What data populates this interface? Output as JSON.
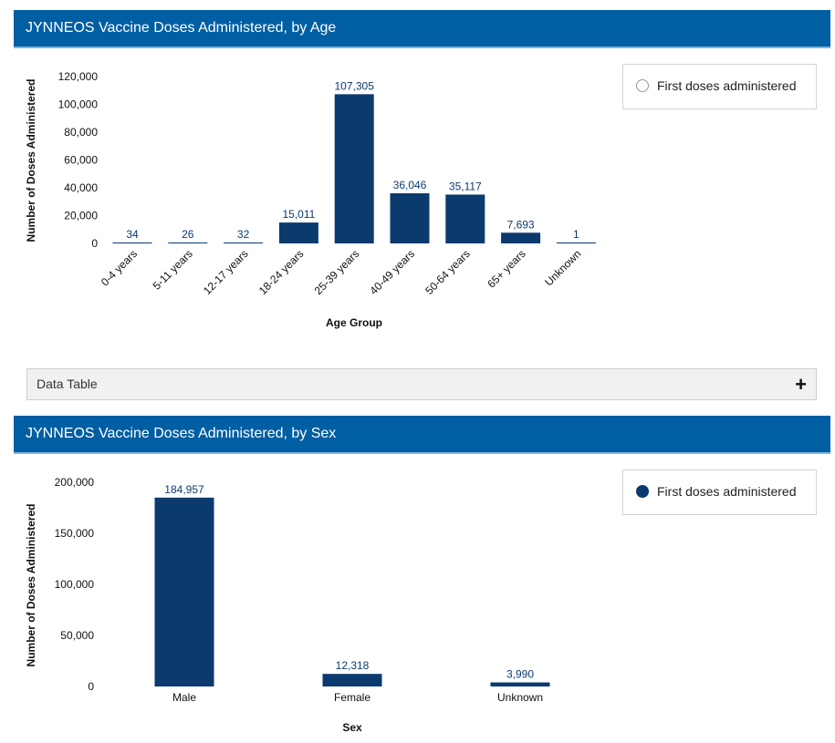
{
  "age_panel": {
    "title": "JYNNEOS Vaccine Doses Administered, by Age",
    "legend_label": "First doses administered",
    "data_table_label": "Data Table",
    "expand_symbol": "+"
  },
  "sex_panel": {
    "title": "JYNNEOS Vaccine Doses Administered, by Sex",
    "legend_label": "First doses administered"
  },
  "colors": {
    "bar": "#0b3a6e",
    "header": "#005ea2",
    "label": "#0b3a6e"
  },
  "chart_data": [
    {
      "type": "bar",
      "title": "JYNNEOS Vaccine Doses Administered, by Age",
      "xlabel": "Age Group",
      "ylabel": "Number of Doses Administered",
      "categories": [
        "0-4 years",
        "5-11 years",
        "12-17 years",
        "18-24 years",
        "25-39 years",
        "40-49 years",
        "50-64 years",
        "65+ years",
        "Unknown"
      ],
      "values": [
        34,
        26,
        32,
        15011,
        107305,
        36046,
        35117,
        7693,
        1
      ],
      "value_labels": [
        "34",
        "26",
        "32",
        "15,011",
        "107,305",
        "36,046",
        "35,117",
        "7,693",
        "1"
      ],
      "ylim": [
        0,
        120000
      ],
      "yticks": [
        0,
        20000,
        40000,
        60000,
        80000,
        100000,
        120000
      ],
      "ytick_labels": [
        "0",
        "20,000",
        "40,000",
        "60,000",
        "80,000",
        "100,000",
        "120,000"
      ],
      "series": [
        {
          "name": "First doses administered"
        }
      ],
      "grid": false,
      "legend_position": "top-right"
    },
    {
      "type": "bar",
      "title": "JYNNEOS Vaccine Doses Administered, by Sex",
      "xlabel": "Sex",
      "ylabel": "Number of Doses Administered",
      "categories": [
        "Male",
        "Female",
        "Unknown"
      ],
      "values": [
        184957,
        12318,
        3990
      ],
      "value_labels": [
        "184,957",
        "12,318",
        "3,990"
      ],
      "ylim": [
        0,
        200000
      ],
      "yticks": [
        0,
        50000,
        100000,
        150000,
        200000
      ],
      "ytick_labels": [
        "0",
        "50,000",
        "100,000",
        "150,000",
        "200,000"
      ],
      "series": [
        {
          "name": "First doses administered"
        }
      ],
      "grid": false,
      "legend_position": "top-right"
    }
  ]
}
